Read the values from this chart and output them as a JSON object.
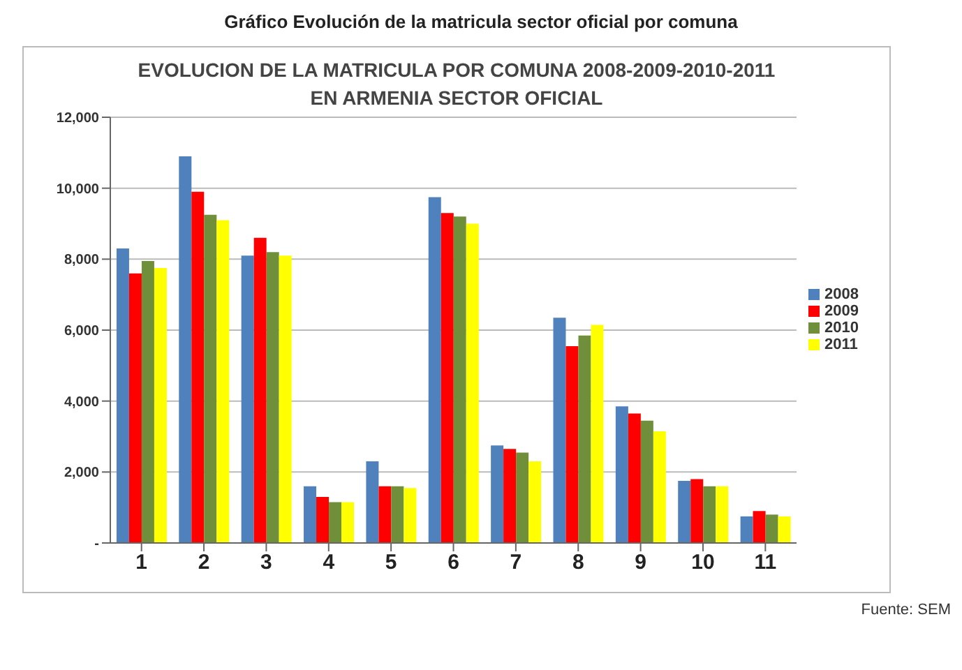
{
  "chart_data": {
    "type": "bar",
    "title": "Gráfico Evolución de la matricula sector oficial por comuna",
    "subtitle": "EVOLUCION DE LA MATRICULA POR COMUNA 2008-2009-2010-2011 EN ARMENIA SECTOR OFICIAL",
    "categories": [
      "1",
      "2",
      "3",
      "4",
      "5",
      "6",
      "7",
      "8",
      "9",
      "10",
      "11"
    ],
    "series": [
      {
        "name": "2008",
        "color": "#4f81bd",
        "values": [
          8300,
          10900,
          8100,
          1600,
          2300,
          9750,
          2750,
          6350,
          3850,
          1750,
          750
        ]
      },
      {
        "name": "2009",
        "color": "#ff0000",
        "values": [
          7600,
          9900,
          8600,
          1300,
          1600,
          9300,
          2650,
          5550,
          3650,
          1800,
          900
        ]
      },
      {
        "name": "2010",
        "color": "#6f8f3a",
        "values": [
          7950,
          9250,
          8200,
          1150,
          1600,
          9200,
          2550,
          5850,
          3450,
          1600,
          800
        ]
      },
      {
        "name": "2011",
        "color": "#ffff00",
        "values": [
          7750,
          9100,
          8100,
          1150,
          1550,
          9000,
          2300,
          6150,
          3150,
          1600,
          750
        ]
      }
    ],
    "ylim": [
      0,
      12000
    ],
    "yticks": [
      {
        "value": 0,
        "label": "-"
      },
      {
        "value": 2000,
        "label": "2,000"
      },
      {
        "value": 4000,
        "label": "4,000"
      },
      {
        "value": 6000,
        "label": "6,000"
      },
      {
        "value": 8000,
        "label": "8,000"
      },
      {
        "value": 10000,
        "label": "10,000"
      },
      {
        "value": 12000,
        "label": "12,000"
      }
    ],
    "grid": "y",
    "legend": "right",
    "annotations": [
      "Fuente: SEM"
    ]
  }
}
